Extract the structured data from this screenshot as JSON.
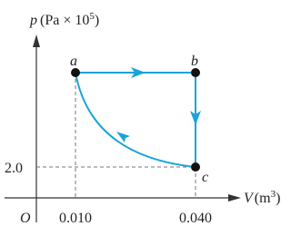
{
  "axes": {
    "y_label": "p",
    "y_unit": "(Pa × 10",
    "y_unit_exp": "5",
    "y_unit_close": ")",
    "x_label": "V",
    "x_unit": "(m",
    "x_unit_exp": "3",
    "x_unit_close": ")",
    "origin": "O"
  },
  "ticks": {
    "y": "2.0",
    "x": [
      "0.010",
      "0.040"
    ]
  },
  "points": [
    "a",
    "b",
    "c"
  ]
}
